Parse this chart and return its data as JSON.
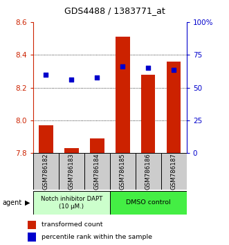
{
  "title": "GDS4488 / 1383771_at",
  "samples": [
    "GSM786182",
    "GSM786183",
    "GSM786184",
    "GSM786185",
    "GSM786186",
    "GSM786187"
  ],
  "bar_values": [
    7.97,
    7.83,
    7.89,
    8.51,
    8.28,
    8.36
  ],
  "dot_values": [
    8.28,
    8.25,
    8.26,
    8.33,
    8.32,
    8.31
  ],
  "bar_bottom": 7.8,
  "ylim_left": [
    7.8,
    8.6
  ],
  "ylim_right": [
    0,
    100
  ],
  "yticks_left": [
    7.8,
    8.0,
    8.2,
    8.4,
    8.6
  ],
  "yticks_right": [
    0,
    25,
    50,
    75,
    100
  ],
  "ytick_labels_right": [
    "0",
    "25",
    "50",
    "75",
    "100%"
  ],
  "bar_color": "#cc2200",
  "dot_color": "#0000cc",
  "group1_label": "Notch inhibitor DAPT\n(10 μM.)",
  "group2_label": "DMSO control",
  "group1_color": "#ccffcc",
  "group2_color": "#44ee44",
  "legend_bar": "transformed count",
  "legend_dot": "percentile rank within the sample",
  "agent_label": "agent",
  "sample_bg": "#cccccc",
  "figsize": [
    3.31,
    3.54
  ],
  "dpi": 100
}
